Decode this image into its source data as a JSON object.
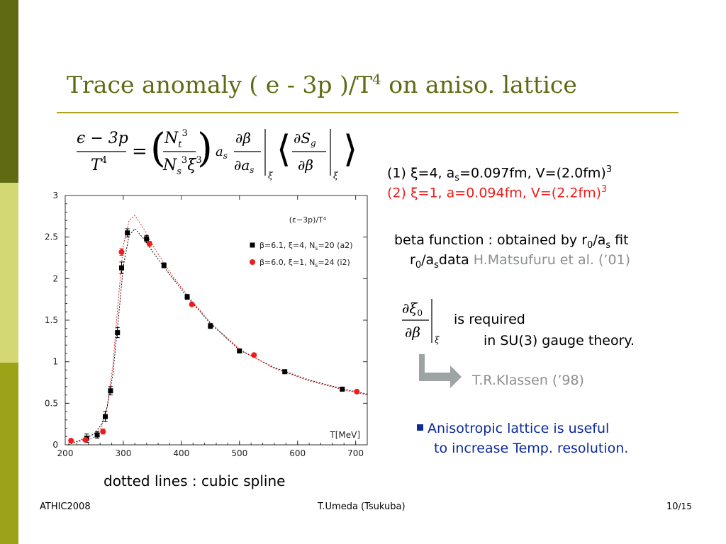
{
  "title": {
    "main": "Trace anomaly   ( e - 3p )/T",
    "sup": "4",
    "tail": " on aniso. lattice"
  },
  "params": {
    "line1": "(1) ξ=4, a",
    "line1_sub": "s",
    "line1_mid": "=0.097fm, V=(2.0fm)",
    "line1_sup": "3",
    "line2": "(2) ξ=1, a=0.094fm, V=(2.2fm)",
    "line2_sup": "3"
  },
  "beta": {
    "line1_a": "beta function : obtained by r",
    "line1_sub0": "0",
    "line1_b": "/a",
    "line1_subs": "s",
    "line1_c": " fit",
    "line2_a": "r",
    "line2_sub0": "0",
    "line2_b": "/a",
    "line2_subs": "s",
    "line2_c": "data ",
    "line2_ref": "H.Matsufuru et al. (’01)"
  },
  "required": {
    "line1": "is required",
    "line2": "in SU(3) gauge theory.",
    "ref": "T.R.Klassen (’98)"
  },
  "note": {
    "line1": "Anisotropic lattice is useful",
    "line2": "to increase Temp. resolution."
  },
  "caption": "dotted lines : cubic spline",
  "footer": {
    "left": "ATHIC2008",
    "center": "T.Umeda (Tsukuba)",
    "page": "10",
    "total": "/15"
  },
  "colors": {
    "black_series": "#000000",
    "red_series": "#ee1c1c",
    "title": "#5f6a12",
    "link": "#8c8f8f",
    "bullet": "#0b2a9b"
  },
  "chart_data": {
    "type": "scatter",
    "title": "(ε−3p)/T⁴",
    "xlabel": "T[MeV]",
    "ylabel": "",
    "xlim": [
      200,
      720
    ],
    "ylim": [
      0,
      3
    ],
    "xticks": [
      200,
      300,
      400,
      500,
      600,
      700
    ],
    "yticks": [
      0,
      0.5,
      1,
      1.5,
      2,
      2.5,
      3
    ],
    "ytick_labels": [
      "0",
      "0.5",
      "1",
      "1.5",
      "2",
      "2.5",
      "3"
    ],
    "legend_position": "top-right",
    "series": [
      {
        "name": "β=6.1, ξ=4, N",
        "name_sub": "s",
        "name_tail": "=20 (a2)",
        "color": "#000000",
        "marker": "square",
        "x": [
          237,
          255,
          269,
          278,
          290,
          297,
          307,
          340,
          370,
          410,
          450,
          500,
          578,
          677
        ],
        "y": [
          0.08,
          0.12,
          0.34,
          0.65,
          1.35,
          2.13,
          2.55,
          2.48,
          2.16,
          1.78,
          1.43,
          1.13,
          0.88,
          0.67
        ],
        "err": [
          0.05,
          0.04,
          0.06,
          0.05,
          0.06,
          0.07,
          0.05,
          0.04,
          0.03,
          0.03,
          0.03,
          0.02,
          0.02,
          0.02
        ]
      },
      {
        "name": "β=6.0, ξ=1, N",
        "name_sub": "s",
        "name_tail": "=24 (i2)",
        "color": "#ee1c1c",
        "marker": "circle",
        "x": [
          210,
          235,
          265,
          297,
          345,
          418,
          525,
          702
        ],
        "y": [
          0.05,
          0.06,
          0.16,
          2.32,
          2.42,
          1.69,
          1.08,
          0.64
        ],
        "err": [
          0.02,
          0.02,
          0.03,
          0.04,
          0.03,
          0.02,
          0.02,
          0.02
        ]
      }
    ],
    "splines": [
      {
        "series": "a2",
        "color": "#000000",
        "x": [
          205,
          230,
          250,
          262,
          272,
          282,
          292,
          300,
          310,
          320,
          335,
          355,
          380,
          410,
          450,
          500,
          560,
          620,
          680,
          720
        ],
        "y": [
          0.0,
          0.07,
          0.13,
          0.24,
          0.45,
          0.85,
          1.55,
          2.15,
          2.52,
          2.6,
          2.48,
          2.28,
          2.05,
          1.78,
          1.46,
          1.14,
          0.93,
          0.78,
          0.67,
          0.61
        ]
      },
      {
        "series": "i2",
        "color": "#ee1c1c",
        "x": [
          205,
          230,
          250,
          262,
          272,
          282,
          292,
          300,
          310,
          320,
          335,
          355,
          380,
          410,
          450,
          500,
          560,
          620,
          680,
          720
        ],
        "y": [
          0.02,
          0.05,
          0.09,
          0.2,
          0.45,
          0.95,
          1.8,
          2.4,
          2.7,
          2.76,
          2.6,
          2.35,
          2.08,
          1.8,
          1.47,
          1.15,
          0.92,
          0.77,
          0.66,
          0.6
        ]
      }
    ]
  }
}
